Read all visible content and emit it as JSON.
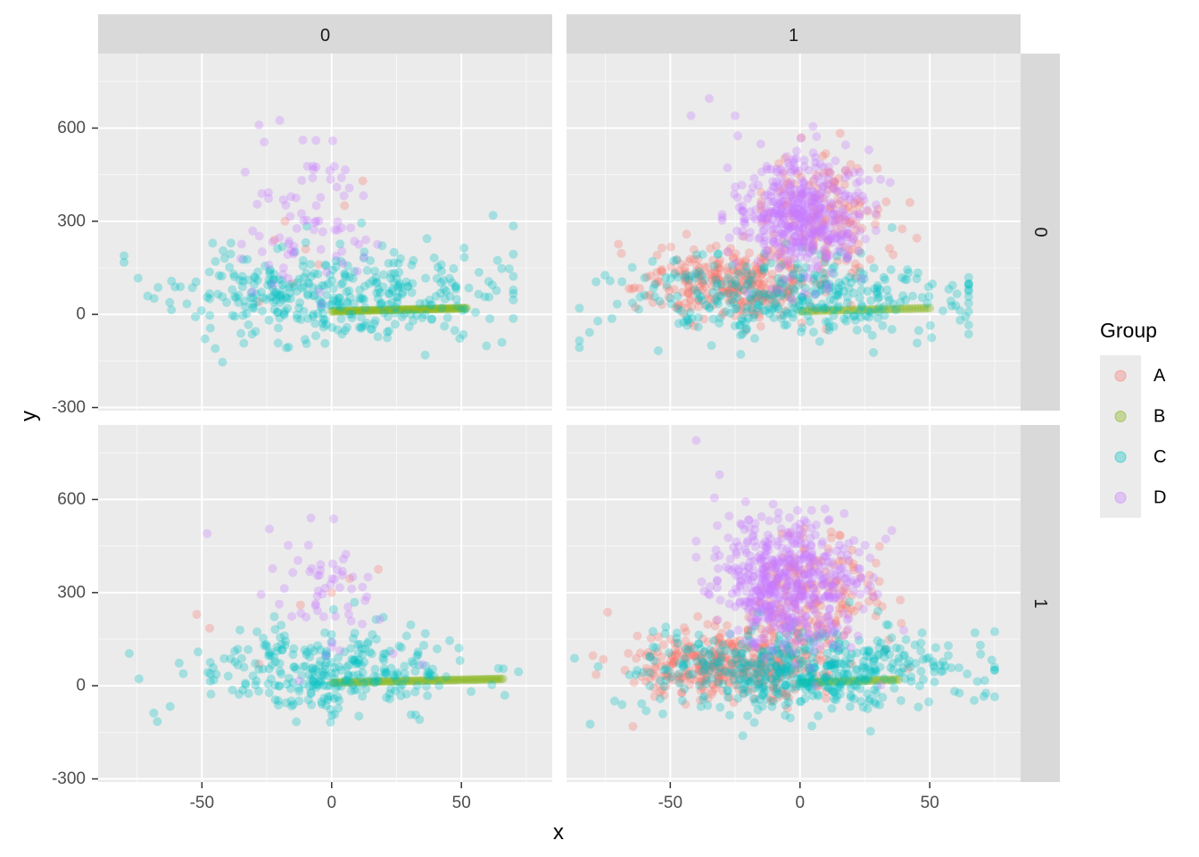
{
  "chart_data": {
    "type": "scatter",
    "title": "",
    "xlabel": "x",
    "ylabel": "y",
    "xlim": [
      -90,
      85
    ],
    "ylim": [
      -310,
      840
    ],
    "x_ticks": [
      -50,
      0,
      50
    ],
    "y_ticks": [
      -300,
      0,
      300,
      600
    ],
    "grid": true,
    "facets": {
      "col_strips": [
        "0",
        "1"
      ],
      "row_strips": [
        "0",
        "1"
      ]
    },
    "legend": {
      "title": "Group",
      "placement": "right",
      "entries": [
        {
          "label": "A",
          "color": "#F8766D"
        },
        {
          "label": "B",
          "color": "#7CAE00"
        },
        {
          "label": "C",
          "color": "#00BFC4"
        },
        {
          "label": "D",
          "color": "#C77CFF"
        }
      ]
    },
    "point_alpha": 0.3,
    "panels": [
      {
        "row": "0",
        "col": "0",
        "series": [
          {
            "name": "A",
            "points": [
              [
                -22,
                240
              ],
              [
                -15,
                100
              ],
              [
                -10,
                210
              ],
              [
                -5,
                160
              ],
              [
                5,
                350
              ],
              [
                12,
                430
              ],
              [
                -28,
                40
              ],
              [
                -18,
                300
              ]
            ]
          },
          {
            "name": "B",
            "line": {
              "x_range": [
                0,
                52
              ],
              "y_range": [
                10,
                20
              ],
              "n": 80
            }
          },
          {
            "name": "C",
            "center": [
              0,
              60
            ],
            "spread": [
              30,
              75
            ],
            "x_range": [
              -80,
              70
            ],
            "n": 380,
            "seed": 11
          },
          {
            "name": "D",
            "center": [
              -10,
              300
            ],
            "spread": [
              12,
              110
            ],
            "x_range": [
              -35,
              35
            ],
            "n": 75,
            "seed": 12
          },
          {
            "name": "D",
            "points": [
              [
                -28,
                610
              ],
              [
                -20,
                625
              ],
              [
                -26,
                555
              ],
              [
                -6,
                475
              ],
              [
                2,
                410
              ]
            ]
          }
        ]
      },
      {
        "row": "0",
        "col": "1",
        "series": [
          {
            "name": "A",
            "center": [
              -25,
              100
            ],
            "spread": [
              18,
              60
            ],
            "x_range": [
              -70,
              10
            ],
            "n": 320,
            "seed": 21
          },
          {
            "name": "A",
            "center": [
              8,
              330
            ],
            "spread": [
              14,
              90
            ],
            "x_range": [
              -15,
              45
            ],
            "n": 150,
            "seed": 22
          },
          {
            "name": "B",
            "line": {
              "x_range": [
                0,
                50
              ],
              "y_range": [
                10,
                20
              ],
              "n": 45
            }
          },
          {
            "name": "C",
            "center": [
              -5,
              50
            ],
            "spread": [
              32,
              70
            ],
            "x_range": [
              -85,
              65
            ],
            "n": 360,
            "seed": 23
          },
          {
            "name": "D",
            "center": [
              0,
              320
            ],
            "spread": [
              12,
              90
            ],
            "x_range": [
              -30,
              35
            ],
            "n": 480,
            "seed": 24
          },
          {
            "name": "D",
            "points": [
              [
                -35,
                695
              ],
              [
                -42,
                640
              ],
              [
                -25,
                640
              ],
              [
                -24,
                575
              ]
            ]
          }
        ]
      },
      {
        "row": "1",
        "col": "0",
        "series": [
          {
            "name": "A",
            "points": [
              [
                -52,
                230
              ],
              [
                -47,
                185
              ],
              [
                -12,
                260
              ],
              [
                0,
                300
              ],
              [
                18,
                375
              ],
              [
                7,
                345
              ],
              [
                -28,
                70
              ]
            ]
          },
          {
            "name": "B",
            "line": {
              "x_range": [
                0,
                66
              ],
              "y_range": [
                10,
                22
              ],
              "n": 80
            }
          },
          {
            "name": "C",
            "center": [
              0,
              50
            ],
            "spread": [
              26,
              70
            ],
            "x_range": [
              -78,
              72
            ],
            "n": 300,
            "seed": 31
          },
          {
            "name": "D",
            "center": [
              0,
              300
            ],
            "spread": [
              12,
              100
            ],
            "x_range": [
              -35,
              35
            ],
            "n": 55,
            "seed": 32
          },
          {
            "name": "D",
            "points": [
              [
                -24,
                505
              ],
              [
                -8,
                540
              ],
              [
                -48,
                490
              ]
            ]
          }
        ]
      },
      {
        "row": "1",
        "col": "1",
        "series": [
          {
            "name": "A",
            "center": [
              -28,
              70
            ],
            "spread": [
              18,
              60
            ],
            "x_range": [
              -80,
              10
            ],
            "n": 380,
            "seed": 41
          },
          {
            "name": "A",
            "center": [
              5,
              290
            ],
            "spread": [
              14,
              100
            ],
            "x_range": [
              -20,
              48
            ],
            "n": 180,
            "seed": 42
          },
          {
            "name": "B",
            "line": {
              "x_range": [
                0,
                38
              ],
              "y_range": [
                10,
                20
              ],
              "n": 40
            }
          },
          {
            "name": "C",
            "center": [
              0,
              40
            ],
            "spread": [
              30,
              70
            ],
            "x_range": [
              -88,
              75
            ],
            "n": 520,
            "seed": 43
          },
          {
            "name": "D",
            "center": [
              -5,
              320
            ],
            "spread": [
              14,
              100
            ],
            "x_range": [
              -40,
              40
            ],
            "n": 560,
            "seed": 44
          },
          {
            "name": "D",
            "points": [
              [
                -40,
                790
              ],
              [
                -31,
                680
              ],
              [
                -33,
                605
              ]
            ]
          }
        ]
      }
    ]
  }
}
